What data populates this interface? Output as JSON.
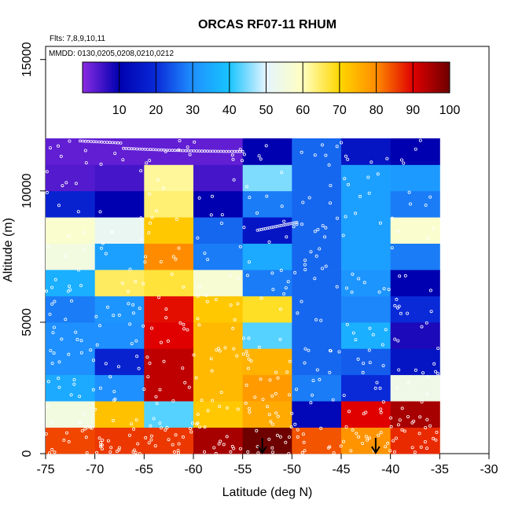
{
  "chart_data": {
    "type": "heatmap",
    "title": "ORCAS RF07-11 RHUM",
    "flights_note": "Flts: 7,8,9,10,11",
    "dates_note": "MMDD: 0130,0205,0208,0210,0212",
    "xlabel": "Latitude (deg N)",
    "ylabel": "Altitude (m)",
    "xlim": [
      -75,
      -30
    ],
    "ylim": [
      0,
      15500
    ],
    "x_ticks": [
      "-75",
      "-70",
      "-65",
      "-60",
      "-55",
      "-50",
      "-45",
      "-40",
      "-35",
      "-30"
    ],
    "y_ticks": [
      "0",
      "5000",
      "10000",
      "15000"
    ],
    "colorbar": {
      "min": 0,
      "max": 100,
      "tick_labels": [
        "10",
        "20",
        "30",
        "40",
        "50",
        "60",
        "70",
        "80",
        "90",
        "100"
      ]
    },
    "lat_bins": [
      -75,
      -70,
      -65,
      -60,
      -55,
      -50,
      -45,
      -40,
      -35
    ],
    "alt_bins": [
      0,
      1000,
      2000,
      3000,
      4000,
      5000,
      6000,
      7000,
      8000,
      9000,
      10000,
      11000,
      12000
    ],
    "rh_grid": [
      [
        85,
        86,
        86,
        95,
        100,
        84,
        79,
        87
      ],
      [
        55,
        73,
        43,
        72,
        76,
        12,
        90,
        95
      ],
      [
        35,
        30,
        93,
        74,
        78,
        28,
        20,
        54
      ],
      [
        30,
        18,
        93,
        74,
        75,
        26,
        25,
        15
      ],
      [
        30,
        30,
        90,
        74,
        43,
        26,
        36,
        8
      ],
      [
        28,
        31,
        89,
        72,
        68,
        26,
        29,
        20
      ],
      [
        36,
        65,
        67,
        57,
        28,
        26,
        31,
        10
      ],
      [
        55,
        33,
        80,
        28,
        35,
        26,
        33,
        28
      ],
      [
        58,
        52,
        72,
        26,
        15,
        26,
        33,
        58
      ],
      [
        18,
        10,
        64,
        10,
        28,
        26,
        33,
        28
      ],
      [
        4,
        5,
        62,
        5,
        45,
        26,
        33,
        32
      ],
      [
        3,
        3,
        3,
        3,
        10,
        26,
        15,
        10
      ]
    ],
    "markers": [
      {
        "lat": -53,
        "label": "down-arrow"
      },
      {
        "lat": -41.5,
        "label": "down-arrow"
      }
    ]
  }
}
